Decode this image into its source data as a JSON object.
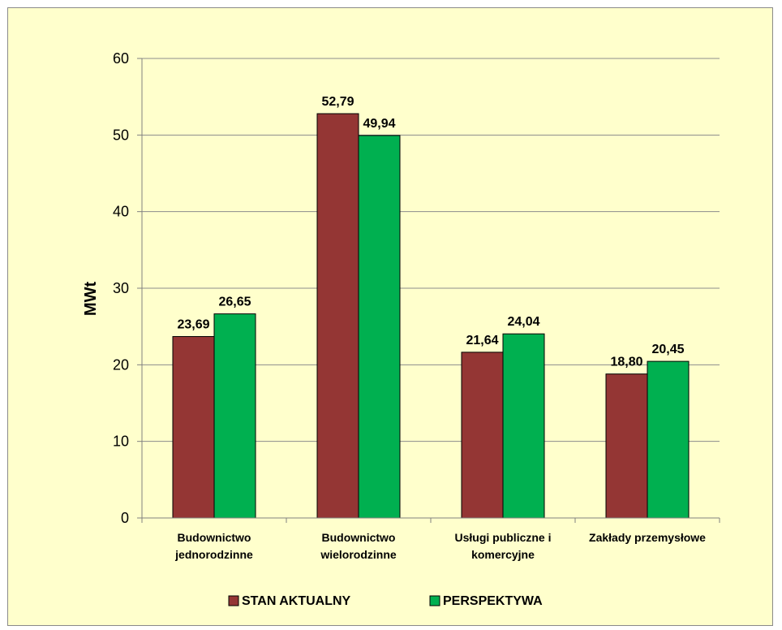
{
  "chart_data": {
    "type": "bar",
    "title": "",
    "xlabel": "",
    "ylabel": "MWt",
    "ylim": [
      0,
      60
    ],
    "yticks": [
      0,
      10,
      20,
      30,
      40,
      50,
      60
    ],
    "grid": true,
    "legend_position": "bottom",
    "categories": [
      [
        "Budownictwo",
        "jednorodzinne"
      ],
      [
        "Budownictwo",
        "wielorodzinne"
      ],
      [
        "Usługi publiczne i",
        "komercyjne"
      ],
      [
        "Zakłady przemysłowe"
      ]
    ],
    "series": [
      {
        "name": "STAN AKTUALNY",
        "color": "#943634",
        "values": [
          23.69,
          52.79,
          21.64,
          18.8
        ],
        "labels": [
          "23,69",
          "52,79",
          "21,64",
          "18,80"
        ]
      },
      {
        "name": "PERSPEKTYWA",
        "color": "#00b050",
        "values": [
          26.65,
          49.94,
          24.04,
          20.45
        ],
        "labels": [
          "26,65",
          "49,94",
          "24,04",
          "20,45"
        ]
      }
    ]
  }
}
